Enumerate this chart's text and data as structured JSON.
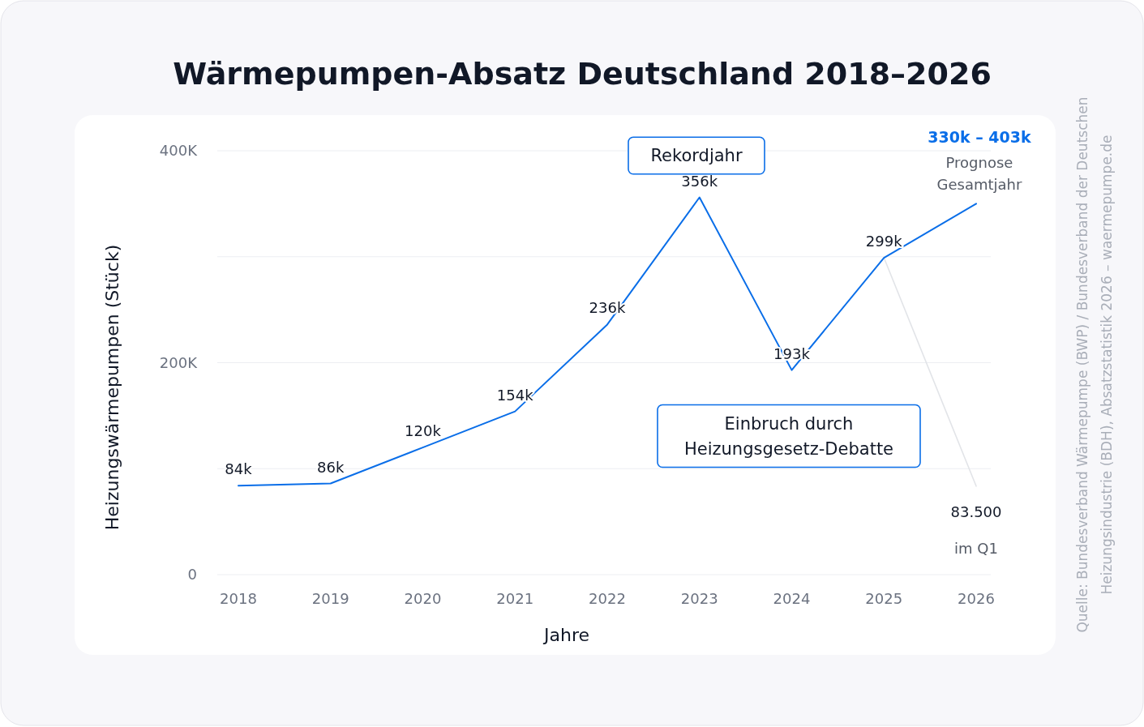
{
  "chart_data": {
    "type": "line",
    "title": "Wärmepumpen-Absatz Deutschland 2018–2026",
    "xlabel": "Jahre",
    "ylabel": "Heizungswärmepumpen (Stück)",
    "categories": [
      "2018",
      "2019",
      "2020",
      "2021",
      "2022",
      "2023",
      "2024",
      "2025",
      "2026"
    ],
    "series": [
      {
        "color": "#0a6ee8",
        "values": [
          84000,
          86000,
          120000,
          154000,
          236000,
          356000,
          193000,
          299000,
          350000
        ],
        "value_labels": [
          "84k",
          "86k",
          "120k",
          "154k",
          "236k",
          "356k",
          "193k",
          "299k",
          null
        ]
      },
      {
        "color": "#e2e4e8",
        "values": [
          null,
          null,
          null,
          null,
          null,
          null,
          null,
          299000,
          83500
        ],
        "value_labels": [
          null,
          null,
          null,
          null,
          null,
          null,
          null,
          null,
          "83.500"
        ]
      }
    ],
    "ylim": [
      0,
      400000
    ],
    "yticks": [
      {
        "value": 0,
        "label": "0"
      },
      {
        "value": 100000,
        "label": null
      },
      {
        "value": 200000,
        "label": "200K"
      },
      {
        "value": 300000,
        "label": null
      },
      {
        "value": 400000,
        "label": "400K"
      }
    ],
    "grid": "y",
    "marker": "none",
    "line_style": "solid",
    "annotations": [
      "Rekordjahr",
      "Einbruch durch Heizungsgesetz-Debatte",
      "330k – 403k",
      "Prognose Gesamtjahr",
      "im Q1",
      "Quelle: Bundesverband Wärmepumpe (BWP) / Bundesverband der Deutschen Heizungsindustrie (BDH), Absatzstatistik 2026 – waermepumpe.de"
    ]
  }
}
